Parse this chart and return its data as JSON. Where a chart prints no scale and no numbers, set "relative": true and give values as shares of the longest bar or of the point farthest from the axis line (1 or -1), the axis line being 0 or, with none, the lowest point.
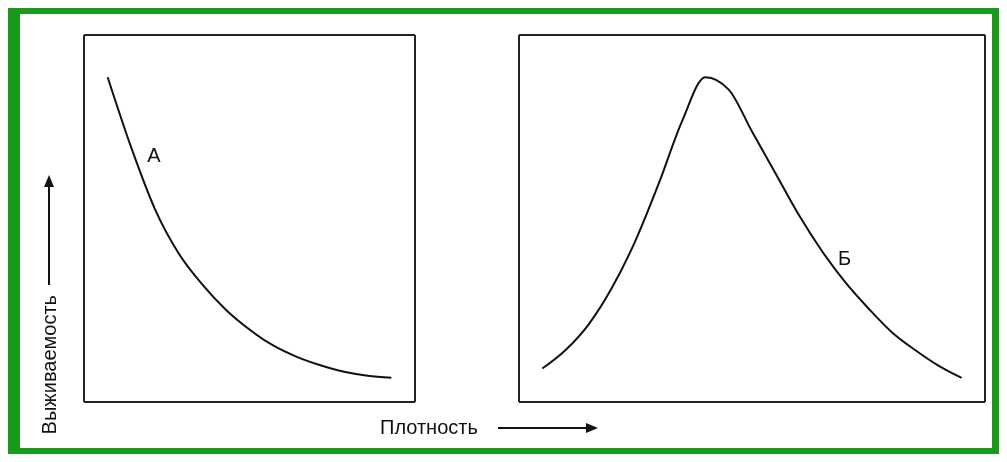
{
  "chart_data": [
    {
      "type": "line",
      "relative": true,
      "ylabel": "Выживаемость",
      "xlabel": "Плотность",
      "marker": "none",
      "line_style": "solid",
      "grid": false,
      "legend": false,
      "categories": [
        null,
        null,
        null,
        null,
        null,
        null,
        null,
        null,
        null,
        null,
        null,
        null,
        null,
        null,
        null
      ],
      "series": [
        {
          "name": "А",
          "color": "#111111",
          "values": [
            null,
            1,
            0.783,
            0.594,
            0.458,
            0.362,
            0.284,
            0.223,
            0.174,
            0.139,
            0.113,
            0.093,
            0.081,
            0.075,
            null
          ]
        }
      ]
    },
    {
      "type": "line",
      "relative": true,
      "marker": "none",
      "line_style": "solid",
      "grid": false,
      "legend": false,
      "categories": [
        null,
        null,
        null,
        null,
        null,
        null,
        null,
        null,
        null,
        null,
        null,
        null,
        null,
        null,
        null,
        null,
        null,
        null,
        null,
        null,
        null
      ],
      "series": [
        {
          "name": "Б",
          "color": "#111111",
          "values": [
            null,
            0.103,
            0.16,
            0.24,
            0.353,
            0.497,
            0.673,
            0.865,
            1,
            0.962,
            0.833,
            0.705,
            0.577,
            0.465,
            0.369,
            0.288,
            0.215,
            0.16,
            0.112,
            0.074,
            null
          ]
        }
      ]
    }
  ]
}
